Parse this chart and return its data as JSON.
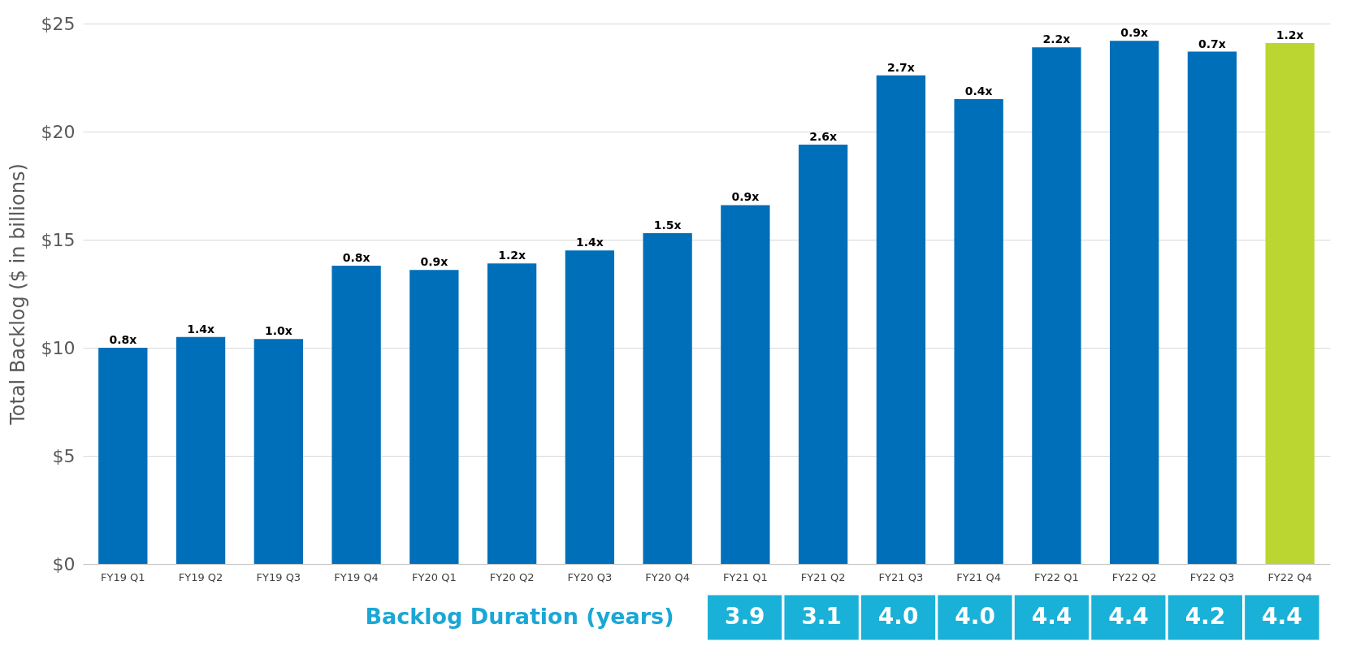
{
  "chart_data": {
    "type": "bar",
    "ylabel": "Total Backlog ($ in billions)",
    "categories": [
      "FY19 Q1",
      "FY19 Q2",
      "FY19 Q3",
      "FY19 Q4",
      "FY20 Q1",
      "FY20 Q2",
      "FY20 Q3",
      "FY20 Q4",
      "FY21 Q1",
      "FY21 Q2",
      "FY21 Q3",
      "FY21 Q4",
      "FY22 Q1",
      "FY22 Q2",
      "FY22 Q3",
      "FY22 Q4"
    ],
    "values": [
      10.0,
      10.5,
      10.4,
      13.8,
      13.6,
      13.9,
      14.5,
      15.3,
      16.6,
      19.4,
      22.6,
      21.5,
      23.9,
      24.2,
      23.7,
      24.1
    ],
    "colors": [
      "#006fba",
      "#006fba",
      "#006fba",
      "#006fba",
      "#006fba",
      "#006fba",
      "#006fba",
      "#006fba",
      "#006fba",
      "#006fba",
      "#006fba",
      "#006fba",
      "#006fba",
      "#006fba",
      "#006fba",
      "#bcd631"
    ],
    "ylim": [
      0,
      25
    ],
    "yticks": [
      {
        "value": 0,
        "label": "$0"
      },
      {
        "value": 5,
        "label": "$5"
      },
      {
        "value": 10,
        "label": "$10"
      },
      {
        "value": 15,
        "label": "$15"
      },
      {
        "value": 20,
        "label": "$20"
      },
      {
        "value": 25,
        "label": "$25"
      }
    ],
    "grid": "y",
    "annotations": [
      {
        "text": "0.8x",
        "x": "FY19 Q1",
        "y": 10.0
      },
      {
        "text": "1.4x",
        "x": "FY19 Q2",
        "y": 10.5
      },
      {
        "text": "1.0x",
        "x": "FY19 Q3",
        "y": 10.4
      },
      {
        "text": "0.8x",
        "x": "FY19 Q4",
        "y": 13.8
      },
      {
        "text": "0.9x",
        "x": "FY20 Q1",
        "y": 13.6
      },
      {
        "text": "1.2x",
        "x": "FY20 Q2",
        "y": 13.9
      },
      {
        "text": "1.4x",
        "x": "FY20 Q3",
        "y": 14.5
      },
      {
        "text": "1.5x",
        "x": "FY20 Q4",
        "y": 15.3
      },
      {
        "text": "0.9x",
        "x": "FY21 Q1",
        "y": 16.6
      },
      {
        "text": "2.6x",
        "x": "FY21 Q2",
        "y": 19.4
      },
      {
        "text": "2.7x",
        "x": "FY21 Q3",
        "y": 22.6
      },
      {
        "text": "0.4x",
        "x": "FY21 Q4",
        "y": 21.5
      },
      {
        "text": "2.2x",
        "x": "FY22 Q1",
        "y": 23.9
      },
      {
        "text": "0.9x",
        "x": "FY22 Q2",
        "y": 24.2
      },
      {
        "text": "0.7x",
        "x": "FY22 Q3",
        "y": 23.7
      },
      {
        "text": "1.2x",
        "x": "FY22 Q4",
        "y": 24.1
      },
      "Backlog Duration (years)",
      "3.9",
      "3.1",
      "4.0",
      "4.0",
      "4.4",
      "4.4",
      "4.2",
      "4.4"
    ]
  }
}
